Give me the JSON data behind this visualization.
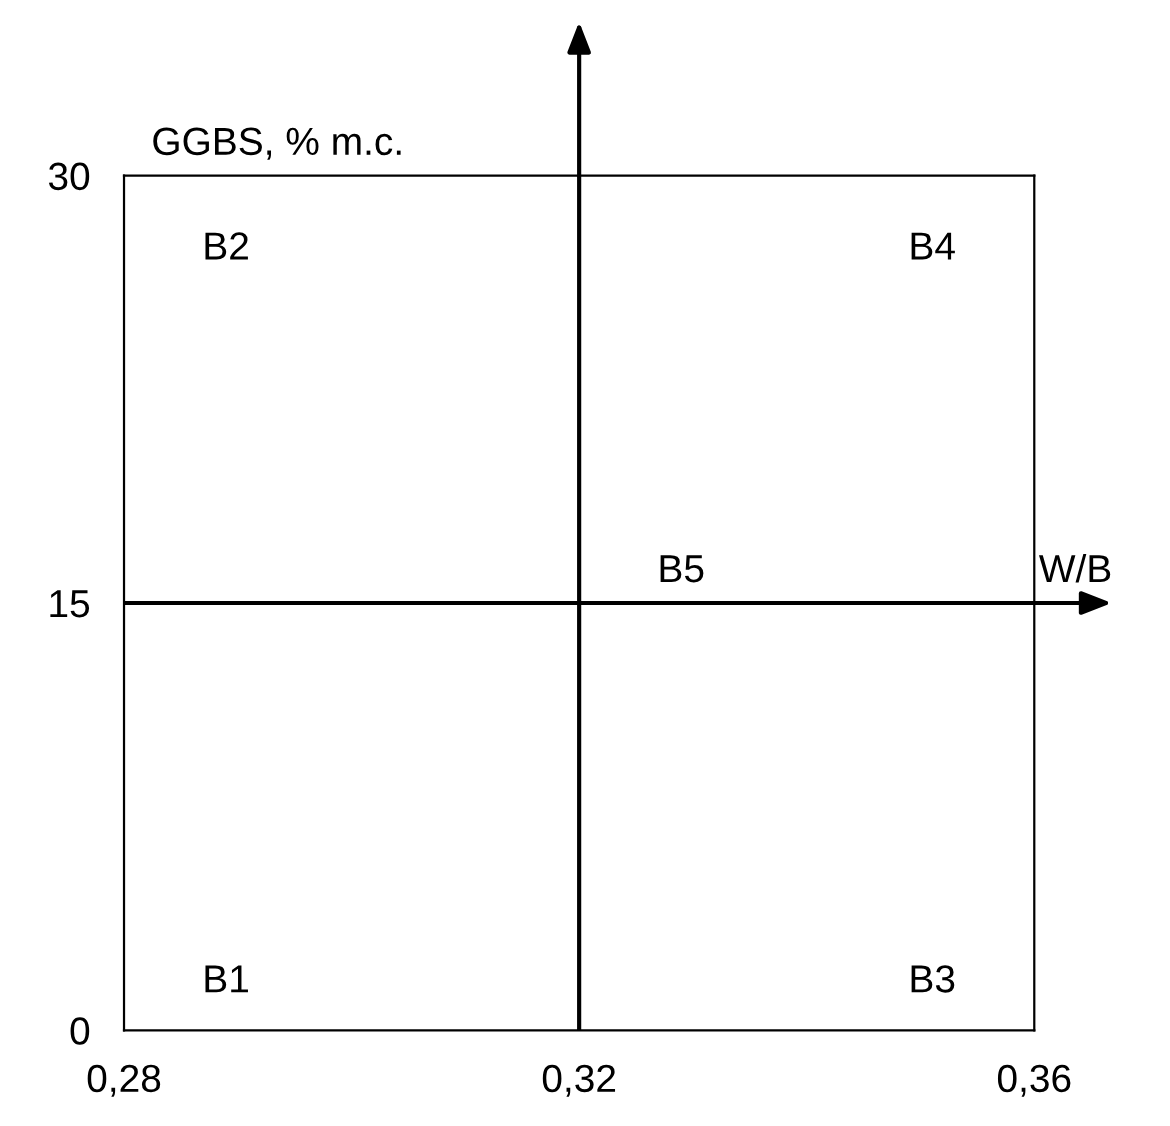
{
  "chart_data": {
    "type": "scatter",
    "grid": false,
    "legend": false,
    "xlabel": "W/B",
    "ylabel": "GGBS, % m.c.",
    "annotations": [
      "B1",
      "B2",
      "B3",
      "B4",
      "B5"
    ],
    "xlim": [
      0.28,
      0.36
    ],
    "ylim": [
      0,
      30
    ],
    "xticks": [
      {
        "value": 0.28,
        "label": "0,28"
      },
      {
        "value": 0.32,
        "label": "0,32"
      },
      {
        "value": 0.36,
        "label": "0,36"
      }
    ],
    "yticks": [
      0,
      15,
      30
    ],
    "ref_lines": [
      {
        "axis": "x",
        "value": 0.32,
        "color": "#000000"
      },
      {
        "axis": "y",
        "value": 15,
        "color": "#000000"
      }
    ]
  }
}
